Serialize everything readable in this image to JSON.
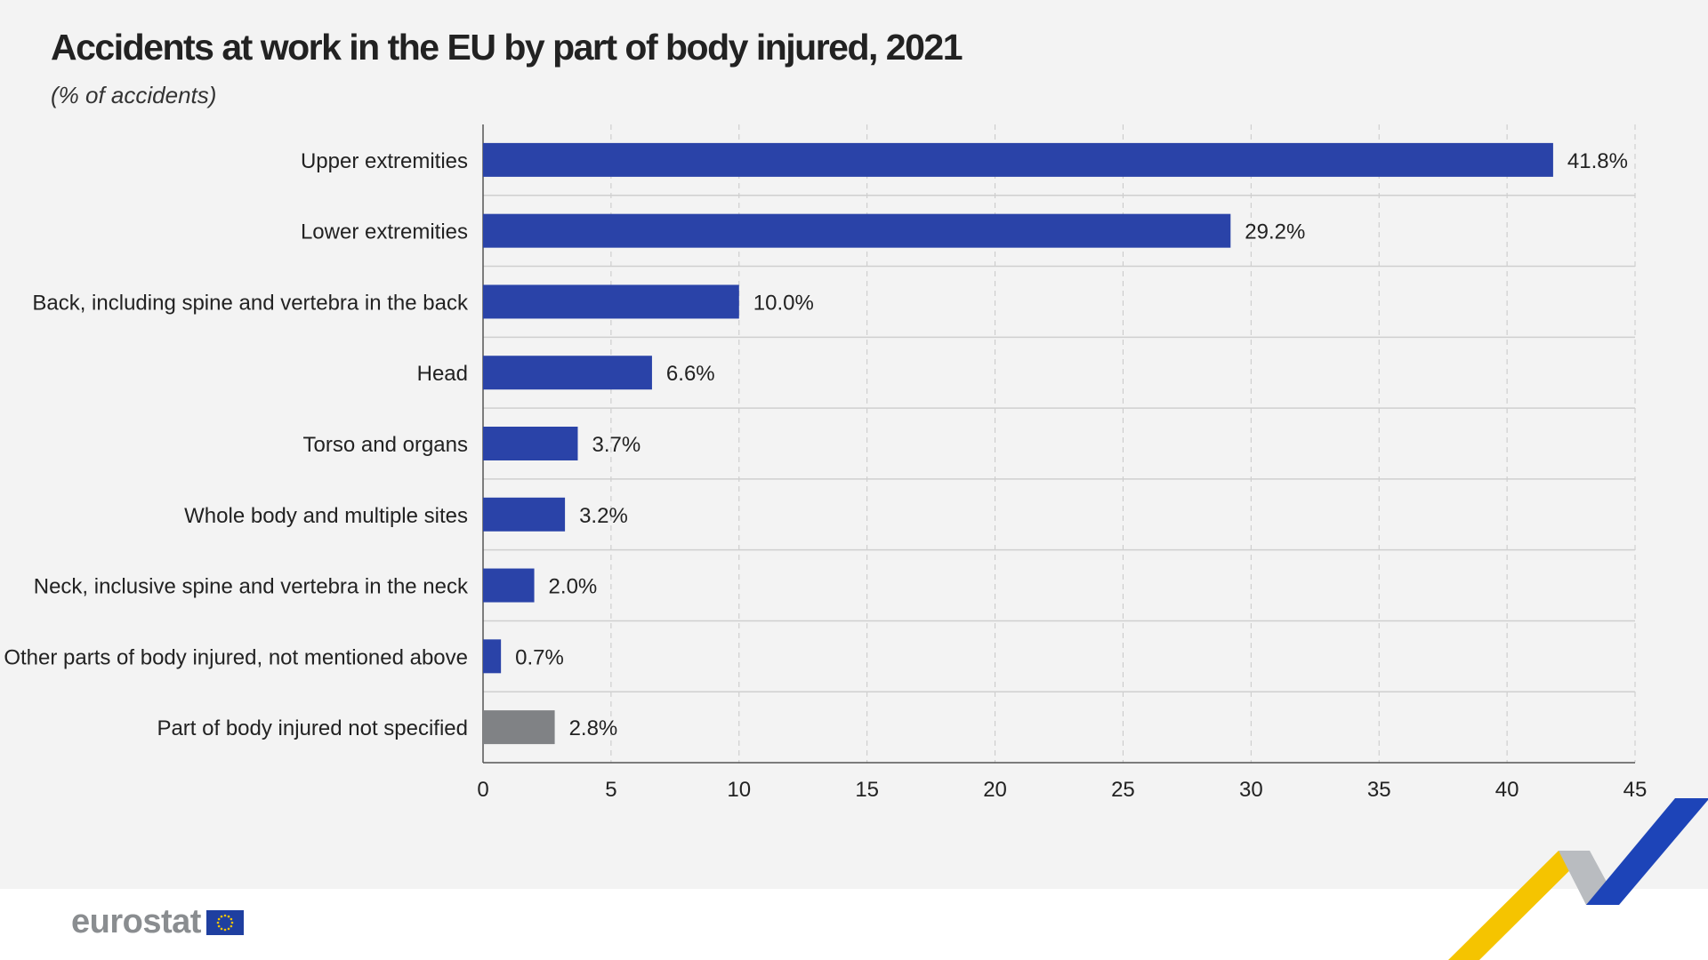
{
  "header": {
    "title": "Accidents at work in the EU by part of body injured, 2021",
    "subtitle": "(% of accidents)"
  },
  "footer": {
    "logo_text": "eurostat"
  },
  "colors": {
    "main_bar": "#2a43a8",
    "unspecified_bar": "#808285",
    "background": "#f3f3f3",
    "logo_gray": "#8a8d90",
    "deco_yellow": "#f5c400",
    "deco_blue": "#1d44b8",
    "deco_gray": "#b9bcc0"
  },
  "chart_data": {
    "type": "bar",
    "orientation": "horizontal",
    "title": "Accidents at work in the EU by part of body injured, 2021",
    "subtitle": "(% of accidents)",
    "categories": [
      "Upper extremities",
      "Lower extremities",
      "Back, including spine and vertebra in the back",
      "Head",
      "Torso and organs",
      "Whole body and multiple sites",
      "Neck, inclusive spine and vertebra in the neck",
      "Other parts of body injured, not mentioned above",
      "Part of body injured not specified"
    ],
    "values": [
      41.8,
      29.2,
      10.0,
      6.6,
      3.7,
      3.2,
      2.0,
      0.7,
      2.8
    ],
    "value_labels": [
      "41.8%",
      "29.2%",
      "10.0%",
      "6.6%",
      "3.7%",
      "3.2%",
      "2.0%",
      "0.7%",
      "2.8%"
    ],
    "highlight_last_gray": true,
    "xlim": [
      0,
      45
    ],
    "xticks": [
      0,
      5,
      10,
      15,
      20,
      25,
      30,
      35,
      40,
      45
    ],
    "grid": true,
    "legend": "none",
    "xlabel": "",
    "ylabel": ""
  }
}
